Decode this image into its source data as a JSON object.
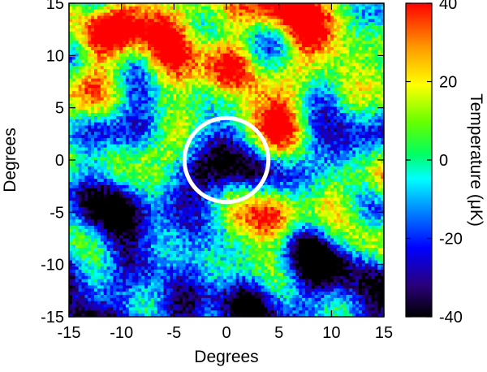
{
  "chart_data": {
    "type": "heatmap",
    "xlabel": "Degrees",
    "ylabel": "Degrees",
    "xlim": [
      -15,
      15
    ],
    "ylim": [
      -15,
      15
    ],
    "x_ticks": [
      "-15",
      "-10",
      "-5",
      "0",
      "5",
      "10",
      "15"
    ],
    "y_ticks": [
      "-15",
      "-10",
      "-5",
      "0",
      "5",
      "10",
      "15"
    ],
    "colorbar": {
      "label": "Temperature (μK)",
      "range": [
        -40,
        40
      ],
      "ticks": [
        "-40",
        "-20",
        "0",
        "20",
        "40"
      ],
      "colors": [
        "#000000",
        "#2a007a",
        "#0000ff",
        "#00a0ff",
        "#00ffff",
        "#00ff60",
        "#66ff00",
        "#ffff00",
        "#ff9900",
        "#ff0000"
      ]
    },
    "annotation": {
      "shape": "circle",
      "center": [
        0,
        0
      ],
      "radius_deg": 4,
      "color": "#ffffff"
    },
    "field": {
      "description_regions": [
        {
          "x": -12,
          "y": 13,
          "value": 30
        },
        {
          "x": -7,
          "y": 13,
          "value": 30
        },
        {
          "x": 3,
          "y": 8,
          "value": 32
        },
        {
          "x": 8,
          "y": 14,
          "value": 28
        },
        {
          "x": -5,
          "y": 9,
          "value": 28
        },
        {
          "x": 4,
          "y": -6,
          "value": 30
        },
        {
          "x": -11,
          "y": -7,
          "value": -28
        },
        {
          "x": -7,
          "y": -9,
          "value": -25
        },
        {
          "x": 9,
          "y": -10,
          "value": -28
        },
        {
          "x": 13,
          "y": -14,
          "value": -30
        },
        {
          "x": 2,
          "y": -14,
          "value": -25
        },
        {
          "x": -12,
          "y": 3,
          "value": -20
        },
        {
          "x": 10,
          "y": 1,
          "value": -15
        },
        {
          "x": -2,
          "y": 1,
          "value": -22
        }
      ]
    }
  }
}
